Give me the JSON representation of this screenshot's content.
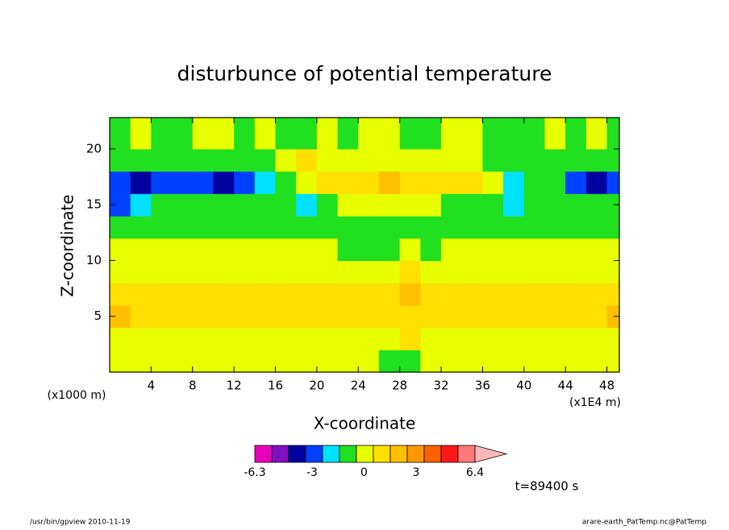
{
  "chart_data": {
    "type": "contour",
    "title": "disturbunce of potential temperature",
    "x_label": "X-coordinate",
    "y_label": "Z-coordinate",
    "x_unit": "(x1E4 m)",
    "y_unit": "(x1000 m)",
    "xlim": [
      0,
      49.2
    ],
    "ylim": [
      0,
      22.8
    ],
    "xticks": [
      4,
      8,
      12,
      16,
      20,
      24,
      28,
      32,
      36,
      40,
      44,
      48
    ],
    "yticks": [
      5,
      10,
      15,
      20
    ],
    "x": [
      1,
      3,
      5,
      7,
      9,
      11,
      13,
      15,
      17,
      19,
      21,
      23,
      25,
      27,
      29,
      31,
      33,
      35,
      37,
      39,
      41,
      43,
      45,
      47,
      49
    ],
    "y": [
      1,
      3,
      5,
      7,
      9,
      11,
      13,
      15,
      17,
      19,
      21
    ],
    "z": [
      [
        0.3,
        0.3,
        0.3,
        0.3,
        0.3,
        0.3,
        0.3,
        0.3,
        0.3,
        0.3,
        0.3,
        0.3,
        0.3,
        -0.6,
        -0.6,
        0.3,
        0.3,
        0.3,
        0.3,
        0.3,
        0.3,
        0.3,
        0.3,
        0.3,
        0.3
      ],
      [
        0.3,
        0.3,
        0.3,
        0.3,
        0.3,
        0.3,
        0.3,
        0.3,
        0.3,
        0.3,
        0.3,
        0.3,
        0.3,
        0.3,
        0.6,
        0.3,
        0.3,
        0.3,
        0.3,
        0.3,
        0.3,
        0.3,
        0.3,
        0.3,
        0.3
      ],
      [
        2.0,
        1.2,
        1.0,
        1.0,
        1.0,
        1.0,
        1.0,
        1.0,
        1.0,
        1.0,
        1.0,
        1.0,
        1.0,
        0.9,
        1.5,
        1.0,
        1.0,
        1.0,
        1.0,
        1.0,
        1.0,
        1.0,
        1.0,
        1.2,
        2.0
      ],
      [
        1.0,
        1.0,
        1.0,
        1.0,
        1.0,
        1.0,
        1.0,
        1.0,
        1.0,
        1.0,
        1.0,
        1.0,
        1.0,
        1.0,
        1.8,
        1.0,
        1.0,
        1.0,
        1.0,
        1.0,
        1.0,
        1.0,
        1.0,
        1.0,
        1.0
      ],
      [
        0.2,
        0.2,
        0.2,
        0.2,
        0.2,
        0.2,
        0.2,
        0.2,
        0.2,
        0.2,
        0.2,
        0.2,
        0.2,
        0.2,
        1.0,
        0.2,
        0.2,
        0.2,
        0.2,
        0.2,
        0.2,
        0.2,
        0.2,
        0.2,
        0.2
      ],
      [
        0.1,
        0.1,
        0.1,
        0.1,
        0.1,
        0.1,
        0.1,
        0.1,
        0.1,
        0.1,
        0.1,
        -0.6,
        -0.6,
        -0.6,
        0.5,
        -0.6,
        0.1,
        0.1,
        0.1,
        0.1,
        0.1,
        0.1,
        0.1,
        0.1,
        0.1
      ],
      [
        -0.9,
        -0.9,
        -0.9,
        -0.9,
        -0.9,
        -0.9,
        -0.9,
        -0.9,
        -0.9,
        -0.9,
        -0.9,
        -0.9,
        -0.9,
        -0.9,
        -0.9,
        -0.9,
        -0.9,
        -0.9,
        -0.9,
        -0.9,
        -0.9,
        -0.9,
        -0.9,
        -0.9,
        -0.9
      ],
      [
        -2.5,
        -1.8,
        -0.9,
        -0.9,
        -0.9,
        -0.9,
        -0.9,
        -0.9,
        -0.9,
        -2.0,
        -0.9,
        0.2,
        0.3,
        0.3,
        0.3,
        0.2,
        -0.9,
        -0.9,
        -0.9,
        -1.8,
        -0.9,
        -0.9,
        -0.9,
        -0.9,
        -1.2
      ],
      [
        -3.0,
        -4.3,
        -3.0,
        -3.0,
        -3.0,
        -4.2,
        -3.0,
        -1.8,
        -0.9,
        0.3,
        1.0,
        1.2,
        1.5,
        2.0,
        1.3,
        1.0,
        1.2,
        0.9,
        0.3,
        -2.0,
        -1.2,
        -0.9,
        -3.0,
        -4.2,
        -3.0
      ],
      [
        -0.9,
        -0.8,
        -0.8,
        -0.8,
        -0.8,
        -0.8,
        -0.8,
        -0.8,
        0.3,
        0.8,
        0.3,
        0.3,
        0.3,
        0.3,
        0.3,
        0.2,
        0.2,
        0.2,
        -0.8,
        -0.8,
        -0.8,
        -0.8,
        -0.8,
        -0.8,
        -0.8
      ],
      [
        -0.8,
        0.2,
        -0.8,
        -0.8,
        0.2,
        0.2,
        -0.8,
        0.2,
        -0.8,
        -0.8,
        0.2,
        -0.8,
        0.2,
        0.2,
        -0.8,
        -0.8,
        0.2,
        0.2,
        -0.8,
        -0.8,
        -0.8,
        0.2,
        -0.8,
        0.2,
        -0.8
      ]
    ],
    "colorbar": {
      "clim": [
        -6.3,
        6.4
      ],
      "colors": [
        "#e800b8",
        "#8010c0",
        "#0000a0",
        "#0040ff",
        "#00e0ff",
        "#20e020",
        "#e8ff00",
        "#ffe000",
        "#ffc000",
        "#ff9800",
        "#ff6000",
        "#ff1818",
        "#ff7878"
      ],
      "over_color": "#ffb8b8",
      "ticks": [
        -6.3,
        -3,
        0,
        3,
        6.4
      ]
    },
    "annotation": "t=89400 s",
    "footer_left": "/usr/bin/gpview  2010-11-19",
    "footer_right": "arare-earth_PatTemp.nc@PatTemp"
  }
}
